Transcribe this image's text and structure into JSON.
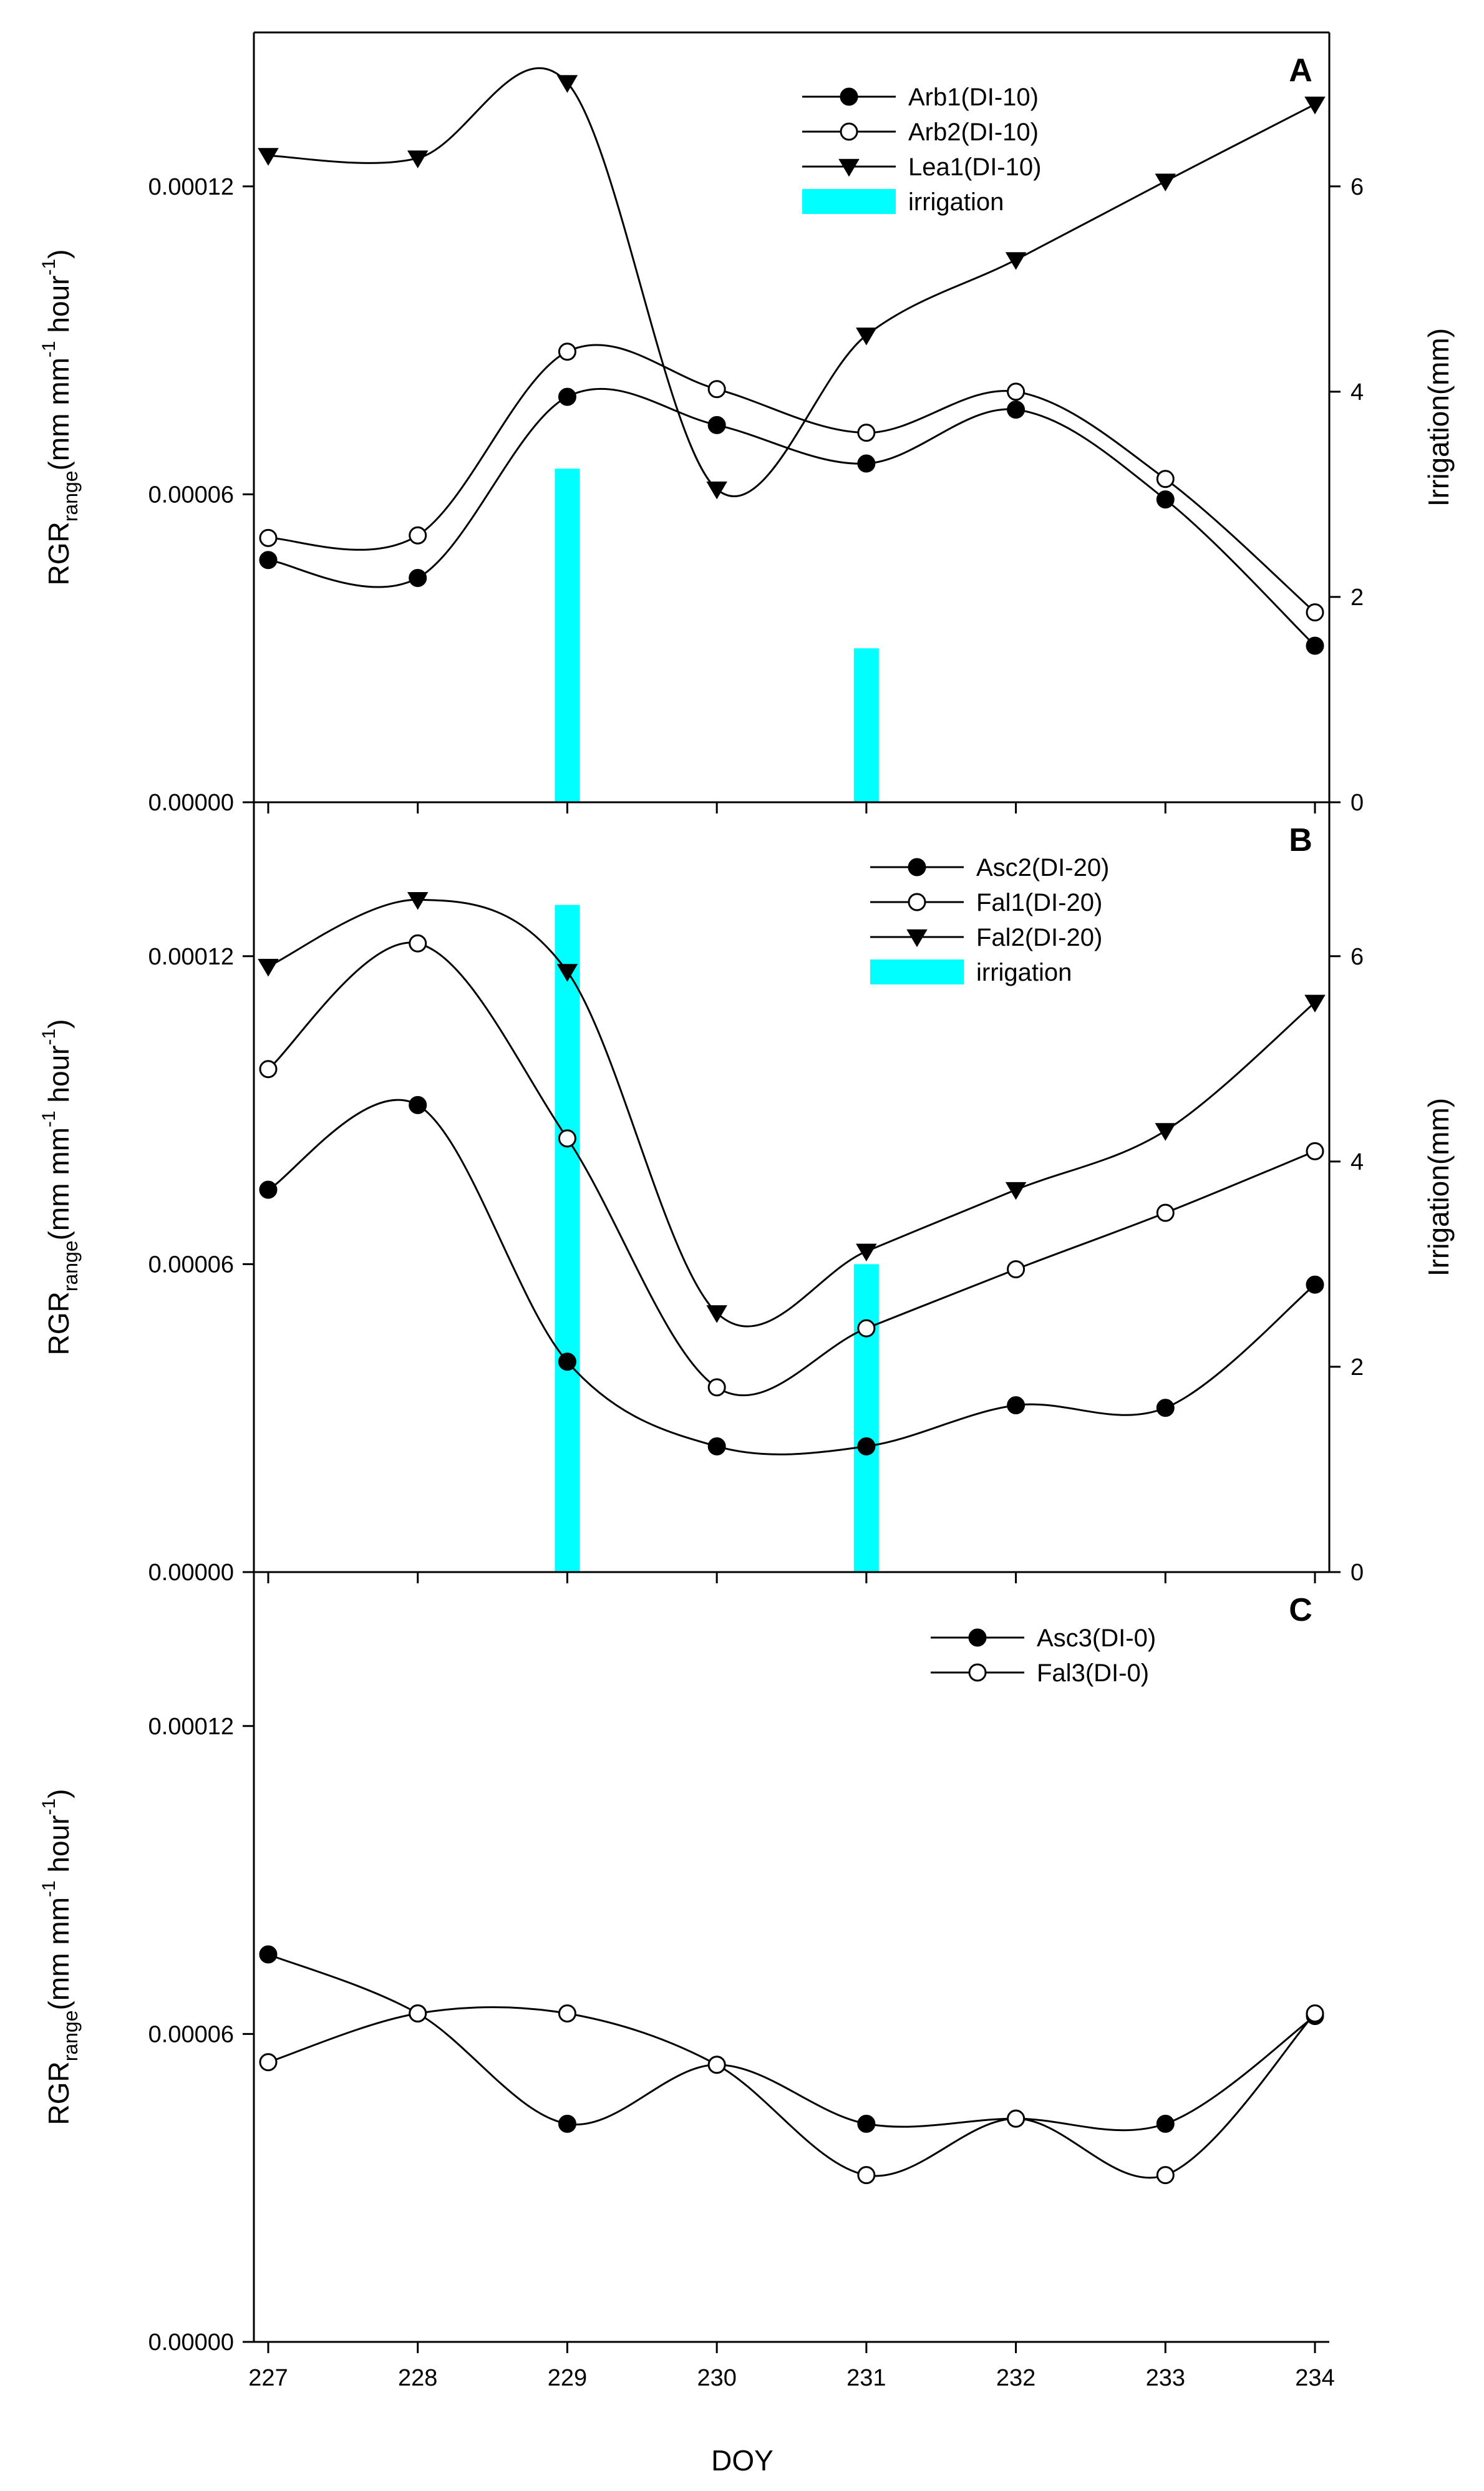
{
  "chart_data": [
    {
      "type": "line",
      "panel": "A",
      "x": [
        227,
        228,
        229,
        230,
        231,
        232,
        233,
        234
      ],
      "xlabel": "DOY",
      "ylabel_main": "RGR",
      "ylabel_sub": "range",
      "ylabel_unit": "(mm mm",
      "ylabel_exp1": "-1",
      "ylabel_mid": " hour",
      "ylabel_exp2": "-1",
      "ylabel_close": ")",
      "ylim": [
        0,
        0.00015
      ],
      "yticks": [
        0,
        6e-05,
        0.00012
      ],
      "ytick_labels": [
        "0.00000",
        "0.00006",
        "0.00012"
      ],
      "y2label": "Irrigation(mm)",
      "y2lim": [
        0,
        7.5
      ],
      "y2ticks": [
        0,
        2,
        4,
        6
      ],
      "y2tick_labels": [
        "0",
        "2",
        "4",
        "6"
      ],
      "series": [
        {
          "name": "Arb1(DI-10)",
          "marker": "filled-circle",
          "values": [
            4.72e-05,
            4.37e-05,
            7.9e-05,
            7.35e-05,
            6.6e-05,
            7.65e-05,
            5.9e-05,
            3.05e-05
          ]
        },
        {
          "name": "Arb2(DI-10)",
          "marker": "open-circle",
          "values": [
            5.15e-05,
            5.2e-05,
            8.78e-05,
            8.05e-05,
            7.2e-05,
            8e-05,
            6.3e-05,
            3.7e-05
          ]
        },
        {
          "name": "Lea1(DI-10)",
          "marker": "filled-triangle-down",
          "values": [
            0.000126,
            0.0001255,
            0.0001402,
            6.1e-05,
            9.1e-05,
            0.0001057,
            0.000121,
            0.000136
          ]
        }
      ],
      "bars": {
        "name": "irrigation",
        "x": [
          229,
          231
        ],
        "values": [
          3.25,
          1.5
        ]
      }
    },
    {
      "type": "line",
      "panel": "B",
      "x": [
        227,
        228,
        229,
        230,
        231,
        232,
        233,
        234
      ],
      "ylim": [
        0,
        0.00015
      ],
      "yticks": [
        0,
        6e-05,
        0.00012
      ],
      "ytick_labels": [
        "0.00000",
        "0.00006",
        "0.00012"
      ],
      "y2label": "Irrigation(mm)",
      "y2lim": [
        0,
        7.5
      ],
      "y2ticks": [
        0,
        2,
        4,
        6
      ],
      "y2tick_labels": [
        "0",
        "2",
        "4",
        "6"
      ],
      "series": [
        {
          "name": "Asc2(DI-20)",
          "marker": "filled-circle",
          "values": [
            7.45e-05,
            9.1e-05,
            4.1e-05,
            2.45e-05,
            2.45e-05,
            3.25e-05,
            3.2e-05,
            5.6e-05
          ]
        },
        {
          "name": "Fal1(DI-20)",
          "marker": "open-circle",
          "values": [
            9.8e-05,
            0.0001225,
            8.45e-05,
            3.6e-05,
            4.75e-05,
            5.9e-05,
            7e-05,
            8.2e-05
          ]
        },
        {
          "name": "Fal2(DI-20)",
          "marker": "filled-triangle-down",
          "values": [
            0.000118,
            0.000131,
            0.000117,
            5.05e-05,
            6.25e-05,
            7.45e-05,
            8.6e-05,
            0.000111
          ]
        }
      ],
      "bars": {
        "name": "irrigation",
        "x": [
          229,
          231
        ],
        "values": [
          6.5,
          3.0
        ]
      }
    },
    {
      "type": "line",
      "panel": "C",
      "x": [
        227,
        228,
        229,
        230,
        231,
        232,
        233,
        234
      ],
      "ylim": [
        0,
        0.00015
      ],
      "yticks": [
        0,
        6e-05,
        0.00012
      ],
      "ytick_labels": [
        "0.00000",
        "0.00006",
        "0.00012"
      ],
      "series": [
        {
          "name": "Asc3(DI-0)",
          "marker": "filled-circle",
          "values": [
            7.55e-05,
            6.4e-05,
            4.25e-05,
            5.4e-05,
            4.25e-05,
            4.35e-05,
            4.25e-05,
            6.35e-05
          ]
        },
        {
          "name": "Fal3(DI-0)",
          "marker": "open-circle",
          "values": [
            5.45e-05,
            6.4e-05,
            6.4e-05,
            5.4e-05,
            3.25e-05,
            4.35e-05,
            3.25e-05,
            6.4e-05
          ]
        }
      ]
    }
  ],
  "colors": {
    "irrigation": "#00ffff",
    "line": "#000000"
  }
}
